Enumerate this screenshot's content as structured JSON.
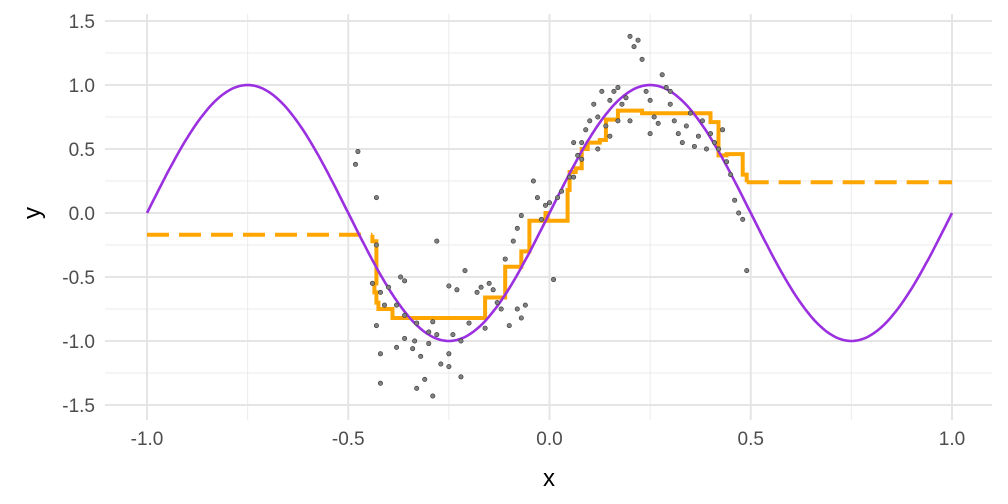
{
  "chart_data": {
    "type": "scatter",
    "title": "",
    "xlabel": "x",
    "ylabel": "y",
    "xlim": [
      -1.0,
      1.0
    ],
    "ylim": [
      -1.5,
      1.5
    ],
    "grid": true,
    "x_ticks": [
      "-1.0",
      "-0.5",
      "0.0",
      "0.5",
      "1.0"
    ],
    "y_ticks": [
      "1.5",
      "1.0",
      "0.5",
      "0.0",
      "-0.5",
      "-1.0",
      "-1.5"
    ],
    "colors": {
      "curve": "#9b30e0",
      "step": "#ffa500",
      "points": "#808080"
    },
    "curve": {
      "function": "sin(2*pi*x)",
      "x_range": [
        -1.0,
        1.0
      ]
    },
    "step_fit": [
      [
        -1.0,
        -0.17
      ],
      [
        -0.44,
        -0.17
      ],
      [
        -0.44,
        -0.22
      ],
      [
        -0.43,
        -0.22
      ],
      [
        -0.43,
        -0.55
      ],
      [
        -0.435,
        -0.55
      ],
      [
        -0.435,
        -0.62
      ],
      [
        -0.43,
        -0.62
      ],
      [
        -0.43,
        -0.7
      ],
      [
        -0.425,
        -0.7
      ],
      [
        -0.425,
        -0.75
      ],
      [
        -0.39,
        -0.75
      ],
      [
        -0.39,
        -0.82
      ],
      [
        -0.16,
        -0.82
      ],
      [
        -0.16,
        -0.66
      ],
      [
        -0.11,
        -0.66
      ],
      [
        -0.11,
        -0.42
      ],
      [
        -0.07,
        -0.42
      ],
      [
        -0.07,
        -0.3
      ],
      [
        -0.05,
        -0.3
      ],
      [
        -0.05,
        -0.06
      ],
      [
        -0.01,
        -0.06
      ],
      [
        -0.01,
        0.0
      ],
      [
        -0.005,
        0.0
      ],
      [
        -0.005,
        -0.06
      ],
      [
        0.045,
        -0.06
      ],
      [
        0.045,
        0.18
      ],
      [
        0.05,
        0.18
      ],
      [
        0.05,
        0.32
      ],
      [
        0.065,
        0.32
      ],
      [
        0.065,
        0.35
      ],
      [
        0.08,
        0.35
      ],
      [
        0.08,
        0.5
      ],
      [
        0.095,
        0.5
      ],
      [
        0.095,
        0.55
      ],
      [
        0.125,
        0.55
      ],
      [
        0.125,
        0.57
      ],
      [
        0.14,
        0.57
      ],
      [
        0.14,
        0.73
      ],
      [
        0.17,
        0.73
      ],
      [
        0.17,
        0.8
      ],
      [
        0.23,
        0.8
      ],
      [
        0.23,
        0.78
      ],
      [
        0.4,
        0.78
      ],
      [
        0.4,
        0.71
      ],
      [
        0.42,
        0.71
      ],
      [
        0.42,
        0.45
      ],
      [
        0.44,
        0.45
      ],
      [
        0.44,
        0.46
      ],
      [
        0.48,
        0.46
      ],
      [
        0.48,
        0.3
      ],
      [
        0.49,
        0.3
      ],
      [
        0.49,
        0.24
      ]
    ],
    "step_extension_left": [
      [
        -1.0,
        -0.17
      ],
      [
        -0.44,
        -0.17
      ]
    ],
    "step_extension_right": [
      [
        0.49,
        0.24
      ],
      [
        1.0,
        0.24
      ]
    ],
    "points": [
      [
        -0.482,
        0.38
      ],
      [
        -0.476,
        0.48
      ],
      [
        -0.43,
        0.12
      ],
      [
        -0.43,
        -0.25
      ],
      [
        -0.44,
        -0.55
      ],
      [
        -0.42,
        -0.62
      ],
      [
        -0.41,
        -0.72
      ],
      [
        -0.43,
        -0.88
      ],
      [
        -0.4,
        -0.58
      ],
      [
        -0.37,
        -0.5
      ],
      [
        -0.36,
        -0.53
      ],
      [
        -0.38,
        -0.72
      ],
      [
        -0.36,
        -0.8
      ],
      [
        -0.33,
        -0.86
      ],
      [
        -0.335,
        -1.0
      ],
      [
        -0.42,
        -1.1
      ],
      [
        -0.42,
        -1.33
      ],
      [
        -0.38,
        -1.05
      ],
      [
        -0.36,
        -0.98
      ],
      [
        -0.34,
        -1.06
      ],
      [
        -0.32,
        -1.12
      ],
      [
        -0.3,
        -1.02
      ],
      [
        -0.29,
        -0.85
      ],
      [
        -0.3,
        -0.93
      ],
      [
        -0.28,
        -0.95
      ],
      [
        -0.27,
        -1.18
      ],
      [
        -0.25,
        -1.1
      ],
      [
        -0.24,
        -0.95
      ],
      [
        -0.22,
        -1.0
      ],
      [
        -0.28,
        -0.22
      ],
      [
        -0.25,
        -0.57
      ],
      [
        -0.23,
        -0.6
      ],
      [
        -0.21,
        -0.45
      ],
      [
        -0.2,
        -0.86
      ],
      [
        -0.22,
        -1.28
      ],
      [
        -0.31,
        -1.3
      ],
      [
        -0.29,
        -1.43
      ],
      [
        -0.33,
        -1.37
      ],
      [
        -0.25,
        -1.2
      ],
      [
        -0.18,
        -0.62
      ],
      [
        -0.17,
        -0.58
      ],
      [
        -0.16,
        -0.9
      ],
      [
        -0.15,
        -0.55
      ],
      [
        -0.14,
        -0.6
      ],
      [
        -0.13,
        -0.7
      ],
      [
        -0.12,
        -0.75
      ],
      [
        -0.1,
        -0.88
      ],
      [
        -0.08,
        -0.75
      ],
      [
        -0.07,
        -0.82
      ],
      [
        -0.06,
        -0.72
      ],
      [
        -0.11,
        -0.36
      ],
      [
        -0.09,
        -0.22
      ],
      [
        -0.08,
        -0.12
      ],
      [
        -0.07,
        -0.02
      ],
      [
        -0.04,
        0.25
      ],
      [
        -0.03,
        0.12
      ],
      [
        -0.02,
        -0.05
      ],
      [
        -0.01,
        0.06
      ],
      [
        0.0,
        0.08
      ],
      [
        0.01,
        -0.52
      ],
      [
        0.02,
        0.12
      ],
      [
        0.03,
        0.17
      ],
      [
        0.05,
        0.28
      ],
      [
        0.06,
        0.28
      ],
      [
        0.07,
        0.45
      ],
      [
        0.08,
        0.55
      ],
      [
        0.09,
        0.65
      ],
      [
        0.1,
        0.72
      ],
      [
        0.11,
        0.85
      ],
      [
        0.12,
        0.5
      ],
      [
        0.13,
        0.95
      ],
      [
        0.14,
        0.68
      ],
      [
        0.15,
        0.88
      ],
      [
        0.16,
        0.95
      ],
      [
        0.17,
        0.72
      ],
      [
        0.18,
        0.85
      ],
      [
        0.19,
        0.9
      ],
      [
        0.2,
        1.38
      ],
      [
        0.21,
        1.3
      ],
      [
        0.22,
        1.35
      ],
      [
        0.23,
        1.2
      ],
      [
        0.24,
        0.95
      ],
      [
        0.25,
        0.88
      ],
      [
        0.26,
        0.75
      ],
      [
        0.27,
        0.7
      ],
      [
        0.28,
        1.08
      ],
      [
        0.29,
        0.98
      ],
      [
        0.3,
        0.85
      ],
      [
        0.31,
        0.72
      ],
      [
        0.32,
        0.62
      ],
      [
        0.33,
        0.55
      ],
      [
        0.34,
        0.68
      ],
      [
        0.35,
        0.78
      ],
      [
        0.36,
        0.52
      ],
      [
        0.37,
        0.6
      ],
      [
        0.38,
        0.72
      ],
      [
        0.39,
        0.5
      ],
      [
        0.4,
        0.62
      ],
      [
        0.41,
        0.55
      ],
      [
        0.42,
        0.5
      ],
      [
        0.43,
        0.65
      ],
      [
        0.44,
        0.4
      ],
      [
        0.45,
        0.3
      ],
      [
        0.46,
        0.1
      ],
      [
        0.47,
        0.0
      ],
      [
        0.48,
        -0.05
      ],
      [
        0.49,
        -0.45
      ],
      [
        0.06,
        0.55
      ],
      [
        0.15,
        0.6
      ],
      [
        0.3,
        0.95
      ],
      [
        0.2,
        0.72
      ],
      [
        0.25,
        0.62
      ],
      [
        0.12,
        0.75
      ],
      [
        0.17,
        0.98
      ],
      [
        0.08,
        0.42
      ]
    ]
  }
}
